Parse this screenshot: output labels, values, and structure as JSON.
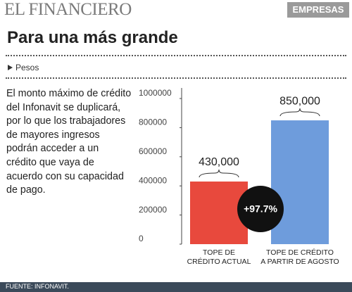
{
  "header": {
    "logo": "EL FINANCIERO",
    "section": "EMPRESAS"
  },
  "title": "Para una más grande",
  "unit": "Pesos",
  "description": "El monto máximo de crédito del Infonavit se duplicará, por lo que los trabajadores de mayores ingresos podrán acceder a un crédito que vaya de acuerdo con su capacidad de pago.",
  "chart_data": {
    "type": "bar",
    "categories": [
      "TOPE DE\nCRÉDITO ACTUAL",
      "TOPE DE CRÉDITO\nA PARTIR DE AGOSTO"
    ],
    "values": [
      430000,
      850000
    ],
    "value_labels": [
      "430,000",
      "850,000"
    ],
    "colors": [
      "#e8493d",
      "#6e9cdc"
    ],
    "ylim": [
      0,
      1000000
    ],
    "yticks": [
      0,
      200000,
      400000,
      600000,
      800000,
      1000000
    ],
    "annotation": "+97.7%"
  },
  "source": "FUENTE: INFONAVIT."
}
